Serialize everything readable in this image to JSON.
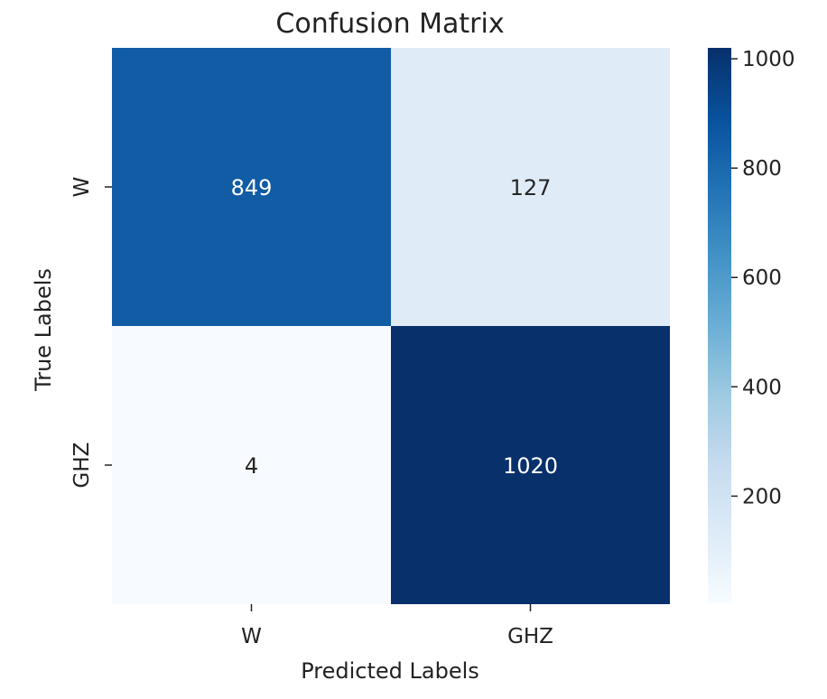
{
  "chart_data": {
    "type": "heatmap",
    "title": "Confusion Matrix",
    "xlabel": "Predicted Labels",
    "ylabel": "True Labels",
    "x_categories": [
      "W",
      "GHZ"
    ],
    "y_categories": [
      "W",
      "GHZ"
    ],
    "values": [
      [
        849,
        127
      ],
      [
        4,
        1020
      ]
    ],
    "colormap": "Blues",
    "vmin": 4,
    "vmax": 1020,
    "colorbar_ticks": [
      200,
      400,
      600,
      800,
      1000
    ],
    "colorbar_tick_labels": [
      "200",
      "400",
      "600",
      "800",
      "1000"
    ]
  }
}
